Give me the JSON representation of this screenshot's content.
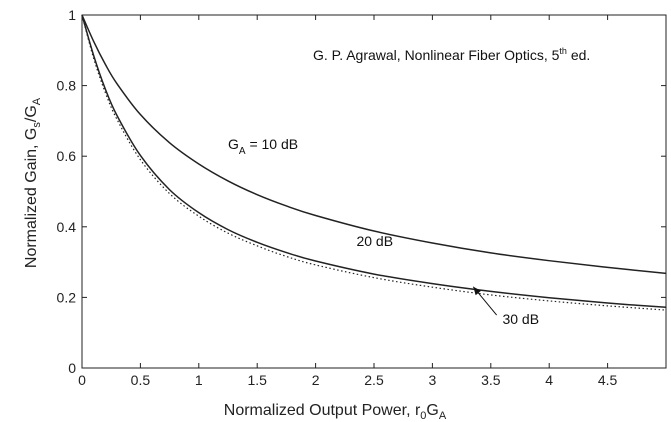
{
  "chart_data": {
    "type": "line",
    "citation": {
      "prefix": "G. P. Agrawal, Nonlinear Fiber Optics, 5",
      "sup": "th",
      "suffix": " ed."
    },
    "xlabel": {
      "main": "Normalized Output Power, r",
      "sub1": "0",
      "mid": "G",
      "sub2": "A"
    },
    "ylabel": {
      "main": "Normalized Gain, G",
      "sub1": "s",
      "mid": "/G",
      "sub2": "A"
    },
    "xlim": [
      0,
      5
    ],
    "ylim": [
      0,
      1
    ],
    "x_ticks": [
      0,
      0.5,
      1,
      1.5,
      2,
      2.5,
      3,
      3.5,
      4,
      4.5
    ],
    "x_tick_labels": [
      "0",
      "0.5",
      "1",
      "1.5",
      "2",
      "2.5",
      "3",
      "3.5",
      "4",
      "4.5"
    ],
    "y_ticks": [
      0,
      0.2,
      0.4,
      0.6,
      0.8,
      1
    ],
    "y_tick_labels": [
      "0",
      "0.2",
      "0.4",
      "0.6",
      "0.8",
      "1"
    ],
    "grid": false,
    "series": [
      {
        "name": "GA = 10 dB",
        "style": "solid",
        "color": "#222222",
        "x": [
          0,
          0.1,
          0.2,
          0.3,
          0.5,
          0.75,
          1,
          1.25,
          1.5,
          1.75,
          2,
          2.5,
          3,
          3.5,
          4,
          4.5,
          5
        ],
        "y": [
          1,
          0.925,
          0.86,
          0.805,
          0.718,
          0.638,
          0.578,
          0.53,
          0.491,
          0.459,
          0.432,
          0.388,
          0.354,
          0.326,
          0.304,
          0.285,
          0.268
        ]
      },
      {
        "name": "20 dB",
        "style": "solid",
        "color": "#222222",
        "x": [
          0,
          0.1,
          0.2,
          0.3,
          0.5,
          0.75,
          1,
          1.25,
          1.5,
          1.75,
          2,
          2.5,
          3,
          3.5,
          4,
          4.5,
          5
        ],
        "y": [
          1,
          0.885,
          0.79,
          0.715,
          0.602,
          0.505,
          0.44,
          0.392,
          0.356,
          0.327,
          0.303,
          0.266,
          0.239,
          0.217,
          0.199,
          0.184,
          0.172
        ]
      },
      {
        "name": "30 dB",
        "style": "dotted",
        "color": "#222222",
        "x": [
          0,
          0.1,
          0.2,
          0.3,
          0.5,
          0.75,
          1,
          1.25,
          1.5,
          1.75,
          2,
          2.5,
          3,
          3.5,
          4,
          4.5,
          5
        ],
        "y": [
          1,
          0.877,
          0.78,
          0.704,
          0.59,
          0.494,
          0.43,
          0.382,
          0.346,
          0.316,
          0.292,
          0.256,
          0.229,
          0.207,
          0.19,
          0.176,
          0.164
        ]
      }
    ],
    "annotations": [
      {
        "name": "ga-10db",
        "prefix": "G",
        "sub": "A",
        "suffix": " = 10 dB",
        "x": 1.25,
        "y": 0.62
      },
      {
        "name": "20db",
        "text": "20 dB",
        "x": 2.35,
        "y": 0.345
      },
      {
        "name": "30db",
        "text": "30 dB",
        "x": 3.6,
        "y": 0.125,
        "arrow_from": [
          3.55,
          0.15
        ],
        "arrow_to": [
          3.35,
          0.23
        ]
      }
    ]
  }
}
